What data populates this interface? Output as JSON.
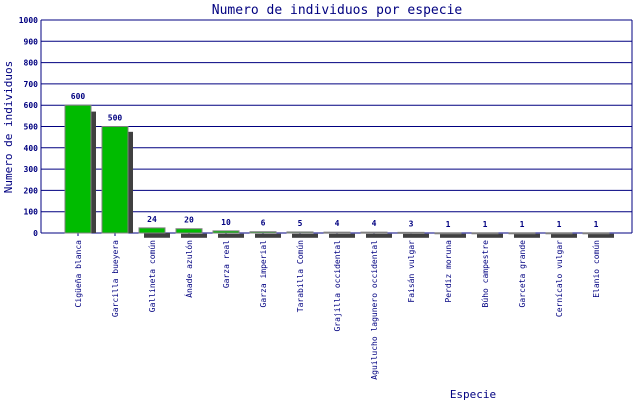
{
  "chart_data": {
    "type": "bar",
    "title": "Numero de individuos por especie",
    "xlabel": "Especie",
    "ylabel": "Numero de individuos",
    "ylim": [
      0,
      1000
    ],
    "yticks": [
      0,
      100,
      200,
      300,
      400,
      500,
      600,
      700,
      800,
      900,
      1000
    ],
    "grid": true,
    "categories": [
      "Cigüeña blanca",
      "Garcilla bueyera",
      "Gallineta común",
      "Ánade azulón",
      "Garza real",
      "Garza imperial",
      "Tarabilla Común",
      "Grajilla occidental",
      "Aguilucho lagunero occidental",
      "Faisán vulgar",
      "Perdiz moruna",
      "Búho campestre",
      "Garceta grande",
      "Cernícalo vulgar",
      "Elanio común"
    ],
    "values": [
      600,
      500,
      24,
      20,
      10,
      6,
      5,
      4,
      4,
      3,
      1,
      1,
      1,
      1,
      1
    ],
    "colors": {
      "bar": "#00bb00",
      "shadow": "#404040",
      "bar_border": "#808080",
      "text": "#000080",
      "grid": "#000080"
    }
  }
}
